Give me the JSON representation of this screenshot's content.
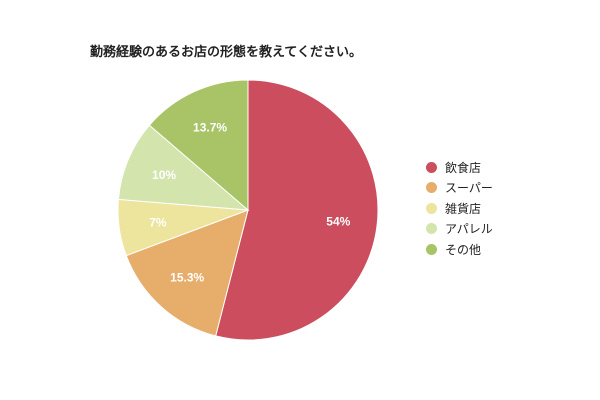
{
  "chart_data": {
    "type": "pie",
    "title": "勤務経験のあるお店の形態を教えてください。",
    "legend_position": "right",
    "slices": [
      {
        "label": "飲食店",
        "value": 54,
        "value_label": "54%",
        "color": "#cb4d5e"
      },
      {
        "label": "スーパー",
        "value": 15.3,
        "value_label": "15.3%",
        "color": "#e7ad6a"
      },
      {
        "label": "雑貨店",
        "value": 7,
        "value_label": "7%",
        "color": "#ede49d"
      },
      {
        "label": "アパレル",
        "value": 10,
        "value_label": "10%",
        "color": "#d4e4ad"
      },
      {
        "label": "その他",
        "value": 13.7,
        "value_label": "13.7%",
        "color": "#a9c466"
      }
    ]
  }
}
